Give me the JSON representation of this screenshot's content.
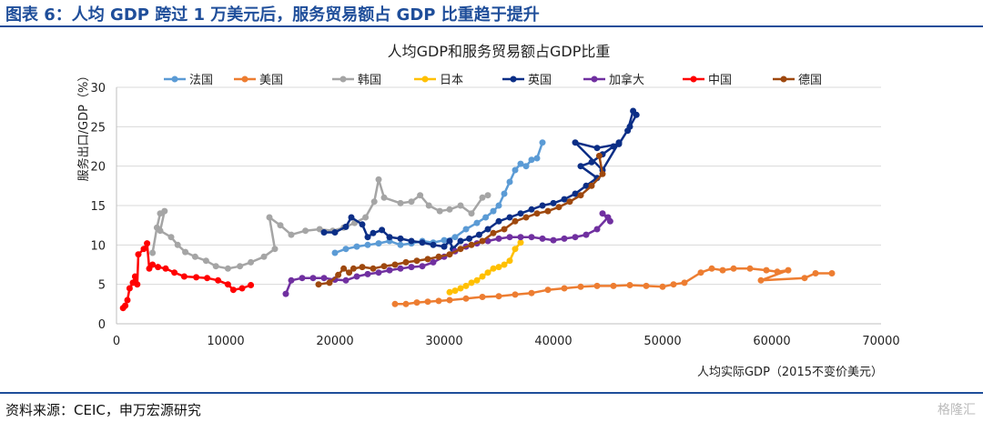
{
  "figure_title": "图表 6：人均 GDP 跨过 1 万美元后，服务贸易额占 GDP 比重趋于提升",
  "source": "资料来源：CEIC，申万宏源研究",
  "watermark": "格隆汇",
  "chart_data": {
    "type": "line",
    "title": "人均GDP和服务贸易额占GDP比重",
    "xlabel": "人均实际GDP（2015不变价美元）",
    "ylabel": "服务出口/GDP（%）",
    "xlim": [
      0,
      70000
    ],
    "ylim": [
      0,
      30
    ],
    "xticks": [
      0,
      10000,
      20000,
      30000,
      40000,
      50000,
      60000,
      70000
    ],
    "yticks": [
      0,
      5,
      10,
      15,
      20,
      25,
      30
    ],
    "grid": "horizontal",
    "legend_position": "top",
    "series": [
      {
        "name": "法国",
        "color": "#5b9bd5",
        "points": [
          [
            20000,
            9.0
          ],
          [
            21000,
            9.5
          ],
          [
            22000,
            9.8
          ],
          [
            23000,
            10.0
          ],
          [
            24000,
            10.2
          ],
          [
            25000,
            10.5
          ],
          [
            26000,
            10.0
          ],
          [
            27000,
            10.2
          ],
          [
            28000,
            10.5
          ],
          [
            29000,
            10.3
          ],
          [
            30000,
            10.6
          ],
          [
            31000,
            11.0
          ],
          [
            32000,
            12.0
          ],
          [
            33000,
            12.8
          ],
          [
            33800,
            13.5
          ],
          [
            34500,
            14.3
          ],
          [
            35000,
            15.0
          ],
          [
            35500,
            16.5
          ],
          [
            36000,
            18.0
          ],
          [
            36500,
            19.5
          ],
          [
            37000,
            20.3
          ],
          [
            37500,
            20.0
          ],
          [
            38000,
            20.8
          ],
          [
            38500,
            21.0
          ],
          [
            39000,
            23.0
          ]
        ]
      },
      {
        "name": "美国",
        "color": "#ed7d31",
        "points": [
          [
            25500,
            2.5
          ],
          [
            26500,
            2.5
          ],
          [
            27500,
            2.7
          ],
          [
            28500,
            2.8
          ],
          [
            29500,
            2.9
          ],
          [
            30500,
            3.0
          ],
          [
            32000,
            3.2
          ],
          [
            33500,
            3.4
          ],
          [
            35000,
            3.5
          ],
          [
            36500,
            3.7
          ],
          [
            38000,
            3.9
          ],
          [
            39500,
            4.3
          ],
          [
            41000,
            4.5
          ],
          [
            42500,
            4.7
          ],
          [
            44000,
            4.8
          ],
          [
            45500,
            4.8
          ],
          [
            47000,
            4.9
          ],
          [
            48500,
            4.8
          ],
          [
            50000,
            4.7
          ],
          [
            51000,
            5.0
          ],
          [
            52000,
            5.2
          ],
          [
            53500,
            6.5
          ],
          [
            54500,
            7.0
          ],
          [
            55500,
            6.8
          ],
          [
            56500,
            7.0
          ],
          [
            58000,
            7.0
          ],
          [
            59500,
            6.8
          ],
          [
            60500,
            6.6
          ],
          [
            61500,
            6.8
          ],
          [
            59000,
            5.5
          ],
          [
            63000,
            5.8
          ],
          [
            64000,
            6.4
          ],
          [
            65500,
            6.4
          ]
        ]
      },
      {
        "name": "韩国",
        "color": "#a5a5a5",
        "points": [
          [
            3300,
            9.0
          ],
          [
            3700,
            12.2
          ],
          [
            4000,
            14.0
          ],
          [
            4400,
            14.3
          ],
          [
            4000,
            11.8
          ],
          [
            5000,
            11.0
          ],
          [
            5600,
            10.0
          ],
          [
            6300,
            9.1
          ],
          [
            7200,
            8.5
          ],
          [
            8200,
            8.0
          ],
          [
            9100,
            7.3
          ],
          [
            10200,
            7.0
          ],
          [
            11300,
            7.3
          ],
          [
            12300,
            7.8
          ],
          [
            13500,
            8.5
          ],
          [
            14500,
            9.5
          ],
          [
            14000,
            13.5
          ],
          [
            15000,
            12.5
          ],
          [
            16000,
            11.3
          ],
          [
            17300,
            11.8
          ],
          [
            18600,
            12.0
          ],
          [
            19800,
            11.8
          ],
          [
            20800,
            12.2
          ],
          [
            21800,
            12.8
          ],
          [
            22800,
            13.5
          ],
          [
            23600,
            15.5
          ],
          [
            24000,
            18.3
          ],
          [
            24500,
            16.0
          ],
          [
            26000,
            15.3
          ],
          [
            27000,
            15.5
          ],
          [
            27800,
            16.3
          ],
          [
            28600,
            15.0
          ],
          [
            29600,
            14.3
          ],
          [
            30500,
            14.5
          ],
          [
            31500,
            15.0
          ],
          [
            32500,
            14.0
          ],
          [
            33500,
            16.0
          ],
          [
            34000,
            16.3
          ]
        ]
      },
      {
        "name": "日本",
        "color": "#ffc000",
        "points": [
          [
            30500,
            4.0
          ],
          [
            31000,
            4.2
          ],
          [
            31500,
            4.5
          ],
          [
            32000,
            4.8
          ],
          [
            32500,
            5.2
          ],
          [
            33000,
            5.5
          ],
          [
            33500,
            6.0
          ],
          [
            34000,
            6.5
          ],
          [
            34500,
            7.0
          ],
          [
            35000,
            7.2
          ],
          [
            35500,
            7.5
          ],
          [
            36000,
            8.0
          ],
          [
            36500,
            9.5
          ],
          [
            37000,
            10.3
          ]
        ]
      },
      {
        "name": "英国",
        "color": "#0b2e86",
        "points": [
          [
            19000,
            11.6
          ],
          [
            20000,
            11.6
          ],
          [
            21000,
            12.3
          ],
          [
            21500,
            13.5
          ],
          [
            22500,
            12.6
          ],
          [
            23000,
            11.0
          ],
          [
            23500,
            11.5
          ],
          [
            24300,
            11.9
          ],
          [
            25000,
            11.0
          ],
          [
            26000,
            10.8
          ],
          [
            27000,
            10.5
          ],
          [
            28000,
            10.3
          ],
          [
            29000,
            10.0
          ],
          [
            30000,
            9.8
          ],
          [
            30500,
            10.5
          ],
          [
            30800,
            9.5
          ],
          [
            31500,
            10.5
          ],
          [
            32300,
            10.8
          ],
          [
            33200,
            11.3
          ],
          [
            34000,
            12.0
          ],
          [
            35000,
            13.0
          ],
          [
            36000,
            13.5
          ],
          [
            37000,
            14.0
          ],
          [
            38000,
            14.5
          ],
          [
            39000,
            15.0
          ],
          [
            40000,
            15.3
          ],
          [
            41000,
            15.8
          ],
          [
            42000,
            16.5
          ],
          [
            43000,
            17.5
          ],
          [
            44000,
            18.5
          ],
          [
            42500,
            20.0
          ],
          [
            43500,
            20.5
          ],
          [
            44500,
            21.5
          ],
          [
            45500,
            22.5
          ],
          [
            46000,
            23.0
          ],
          [
            44500,
            19.5
          ],
          [
            42000,
            23.0
          ],
          [
            44000,
            22.3
          ],
          [
            46000,
            22.8
          ],
          [
            47000,
            25.0
          ],
          [
            47600,
            26.5
          ],
          [
            47300,
            27.0
          ],
          [
            46800,
            24.5
          ]
        ]
      },
      {
        "name": "加拿大",
        "color": "#7030a0",
        "points": [
          [
            15500,
            3.8
          ],
          [
            16000,
            5.5
          ],
          [
            17000,
            5.8
          ],
          [
            18000,
            5.8
          ],
          [
            19000,
            5.8
          ],
          [
            20000,
            5.6
          ],
          [
            21000,
            5.5
          ],
          [
            22000,
            6.0
          ],
          [
            23000,
            6.3
          ],
          [
            24000,
            6.5
          ],
          [
            25000,
            6.8
          ],
          [
            26000,
            7.0
          ],
          [
            27000,
            7.2
          ],
          [
            28000,
            7.3
          ],
          [
            29000,
            7.8
          ],
          [
            30000,
            8.5
          ],
          [
            31000,
            9.2
          ],
          [
            32000,
            9.8
          ],
          [
            33000,
            10.2
          ],
          [
            34000,
            10.5
          ],
          [
            35000,
            10.8
          ],
          [
            36000,
            11.0
          ],
          [
            37000,
            11.0
          ],
          [
            38000,
            11.0
          ],
          [
            39000,
            10.8
          ],
          [
            40000,
            10.6
          ],
          [
            41000,
            10.8
          ],
          [
            42000,
            11.0
          ],
          [
            43000,
            11.3
          ],
          [
            44000,
            12.0
          ],
          [
            45000,
            13.5
          ],
          [
            44500,
            14.0
          ],
          [
            45200,
            13.0
          ]
        ]
      },
      {
        "name": "中国",
        "color": "#ff0000",
        "points": [
          [
            600,
            2.0
          ],
          [
            800,
            2.3
          ],
          [
            1000,
            3.0
          ],
          [
            1200,
            4.5
          ],
          [
            1500,
            5.2
          ],
          [
            1700,
            6.0
          ],
          [
            1900,
            5.0
          ],
          [
            2000,
            8.8
          ],
          [
            2500,
            9.5
          ],
          [
            2800,
            10.2
          ],
          [
            3000,
            7.0
          ],
          [
            3300,
            7.5
          ],
          [
            3800,
            7.2
          ],
          [
            4500,
            7.0
          ],
          [
            5300,
            6.5
          ],
          [
            6200,
            6.0
          ],
          [
            7300,
            5.9
          ],
          [
            8300,
            5.8
          ],
          [
            9300,
            5.5
          ],
          [
            10200,
            5.0
          ],
          [
            10700,
            4.3
          ],
          [
            11500,
            4.5
          ],
          [
            12300,
            4.9
          ]
        ]
      },
      {
        "name": "德国",
        "color": "#9e480e",
        "points": [
          [
            18500,
            5.0
          ],
          [
            19500,
            5.2
          ],
          [
            20300,
            6.2
          ],
          [
            20800,
            7.0
          ],
          [
            21300,
            6.5
          ],
          [
            21700,
            7.0
          ],
          [
            22500,
            7.2
          ],
          [
            23500,
            7.0
          ],
          [
            24500,
            7.3
          ],
          [
            25500,
            7.5
          ],
          [
            26500,
            7.8
          ],
          [
            27500,
            8.0
          ],
          [
            28500,
            8.2
          ],
          [
            29500,
            8.5
          ],
          [
            30500,
            8.8
          ],
          [
            31500,
            9.5
          ],
          [
            32500,
            10.0
          ],
          [
            33500,
            10.5
          ],
          [
            34500,
            11.5
          ],
          [
            35500,
            12.0
          ],
          [
            36500,
            13.0
          ],
          [
            37500,
            13.5
          ],
          [
            38500,
            14.0
          ],
          [
            39500,
            14.3
          ],
          [
            40500,
            14.8
          ],
          [
            41500,
            15.5
          ],
          [
            42500,
            16.3
          ],
          [
            43500,
            17.5
          ],
          [
            44500,
            19.0
          ],
          [
            44200,
            21.3
          ]
        ]
      }
    ]
  }
}
